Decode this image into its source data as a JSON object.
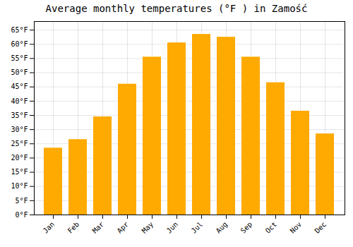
{
  "chart_data": {
    "type": "bar",
    "title": "Average monthly temperatures (°F ) in Zamość",
    "categories": [
      "Jan",
      "Feb",
      "Mar",
      "Apr",
      "May",
      "Jun",
      "Jul",
      "Aug",
      "Sep",
      "Oct",
      "Nov",
      "Dec"
    ],
    "values": [
      23.5,
      26.5,
      34.5,
      46.0,
      55.5,
      60.5,
      63.5,
      62.5,
      55.5,
      46.5,
      36.5,
      28.5
    ],
    "color": "#FFAA00",
    "ylim": [
      0,
      68
    ],
    "yticks": [
      {
        "value": 0,
        "label": "0°F"
      },
      {
        "value": 5,
        "label": "5°F"
      },
      {
        "value": 10,
        "label": "10°F"
      },
      {
        "value": 15,
        "label": "15°F"
      },
      {
        "value": 20,
        "label": "20°F"
      },
      {
        "value": 25,
        "label": "25°F"
      },
      {
        "value": 30,
        "label": "30°F"
      },
      {
        "value": 35,
        "label": "35°F"
      },
      {
        "value": 40,
        "label": "40°F"
      },
      {
        "value": 45,
        "label": "45°F"
      },
      {
        "value": 50,
        "label": "50°F"
      },
      {
        "value": 55,
        "label": "55°F"
      },
      {
        "value": 60,
        "label": "60°F"
      },
      {
        "value": 65,
        "label": "65°F"
      }
    ],
    "grid": true
  }
}
